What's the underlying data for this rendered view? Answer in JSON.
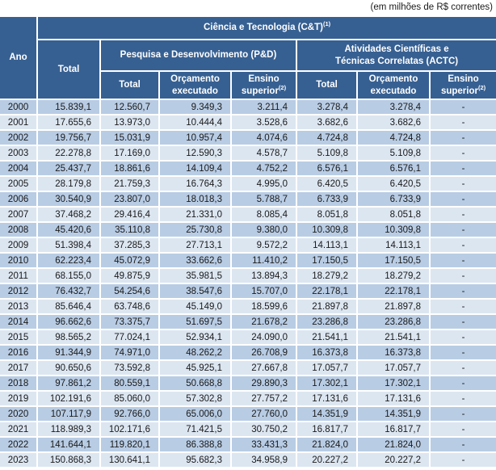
{
  "caption": "(em milhões de R$ correntes)",
  "colors": {
    "header_bg": "#376092",
    "row_even_bg": "#B8CCE4",
    "row_odd_bg": "#DCE6F1",
    "header_text": "#ffffff",
    "body_text": "#1a1a1a"
  },
  "table": {
    "header": {
      "ano": "Ano",
      "ct_label": "Ciência e Tecnologia (C&T)",
      "ct_footnote": "(1)",
      "ct_total": "Total",
      "pd_label": "Pesquisa e Desenvolvimento (P&D)",
      "actc_line1": "Atividades Científicas e",
      "actc_line2": "Técnicas Correlatas (ACTC)",
      "pd_sub_total": "Total",
      "pd_sub_orcamento": "Orçamento executado",
      "pd_sub_ensino": "Ensino superior",
      "pd_sub_ensino_footnote": "(2)",
      "actc_sub_total": "Total",
      "actc_sub_orcamento": "Orçamento executado",
      "actc_sub_ensino": "Ensino superior",
      "actc_sub_ensino_footnote": "(2)"
    },
    "columns": [
      "Ano",
      "C&T Total",
      "P&D Total",
      "P&D Orçamento executado",
      "P&D Ensino superior",
      "ACTC Total",
      "ACTC Orçamento executado",
      "ACTC Ensino superior"
    ],
    "rows": [
      [
        "2000",
        "15.839,1",
        "12.560,7",
        "9.349,3",
        "3.211,4",
        "3.278,4",
        "3.278,4",
        "-"
      ],
      [
        "2001",
        "17.655,6",
        "13.973,0",
        "10.444,4",
        "3.528,6",
        "3.682,6",
        "3.682,6",
        "-"
      ],
      [
        "2002",
        "19.756,7",
        "15.031,9",
        "10.957,4",
        "4.074,6",
        "4.724,8",
        "4.724,8",
        "-"
      ],
      [
        "2003",
        "22.278,8",
        "17.169,0",
        "12.590,3",
        "4.578,7",
        "5.109,8",
        "5.109,8",
        "-"
      ],
      [
        "2004",
        "25.437,7",
        "18.861,6",
        "14.109,4",
        "4.752,2",
        "6.576,1",
        "6.576,1",
        "-"
      ],
      [
        "2005",
        "28.179,8",
        "21.759,3",
        "16.764,3",
        "4.995,0",
        "6.420,5",
        "6.420,5",
        "-"
      ],
      [
        "2006",
        "30.540,9",
        "23.807,0",
        "18.018,3",
        "5.788,7",
        "6.733,9",
        "6.733,9",
        "-"
      ],
      [
        "2007",
        "37.468,2",
        "29.416,4",
        "21.331,0",
        "8.085,4",
        "8.051,8",
        "8.051,8",
        "-"
      ],
      [
        "2008",
        "45.420,6",
        "35.110,8",
        "25.730,8",
        "9.380,0",
        "10.309,8",
        "10.309,8",
        "-"
      ],
      [
        "2009",
        "51.398,4",
        "37.285,3",
        "27.713,1",
        "9.572,2",
        "14.113,1",
        "14.113,1",
        "-"
      ],
      [
        "2010",
        "62.223,4",
        "45.072,9",
        "33.662,6",
        "11.410,2",
        "17.150,5",
        "17.150,5",
        "-"
      ],
      [
        "2011",
        "68.155,0",
        "49.875,9",
        "35.981,5",
        "13.894,3",
        "18.279,2",
        "18.279,2",
        "-"
      ],
      [
        "2012",
        "76.432,7",
        "54.254,6",
        "38.547,6",
        "15.707,0",
        "22.178,1",
        "22.178,1",
        "-"
      ],
      [
        "2013",
        "85.646,4",
        "63.748,6",
        "45.149,0",
        "18.599,6",
        "21.897,8",
        "21.897,8",
        "-"
      ],
      [
        "2014",
        "96.662,6",
        "73.375,7",
        "51.697,5",
        "21.678,2",
        "23.286,8",
        "23.286,8",
        "-"
      ],
      [
        "2015",
        "98.565,2",
        "77.024,1",
        "52.934,1",
        "24.090,0",
        "21.541,1",
        "21.541,1",
        "-"
      ],
      [
        "2016",
        "91.344,9",
        "74.971,0",
        "48.262,2",
        "26.708,9",
        "16.373,8",
        "16.373,8",
        "-"
      ],
      [
        "2017",
        "90.650,6",
        "73.592,8",
        "45.925,1",
        "27.667,8",
        "17.057,7",
        "17.057,7",
        "-"
      ],
      [
        "2018",
        "97.861,2",
        "80.559,1",
        "50.668,8",
        "29.890,3",
        "17.302,1",
        "17.302,1",
        "-"
      ],
      [
        "2019",
        "102.191,6",
        "85.060,0",
        "57.302,8",
        "27.757,2",
        "17.131,6",
        "17.131,6",
        "-"
      ],
      [
        "2020",
        "107.117,9",
        "92.766,0",
        "65.006,0",
        "27.760,0",
        "14.351,9",
        "14.351,9",
        "-"
      ],
      [
        "2021",
        "118.989,3",
        "102.171,6",
        "71.421,5",
        "30.750,2",
        "16.817,7",
        "16.817,7",
        "-"
      ],
      [
        "2022",
        "141.644,1",
        "119.820,1",
        "86.388,8",
        "33.431,3",
        "21.824,0",
        "21.824,0",
        "-"
      ],
      [
        "2023",
        "150.868,3",
        "130.641,1",
        "95.682,3",
        "34.958,9",
        "20.227,2",
        "20.227,2",
        "-"
      ]
    ]
  }
}
